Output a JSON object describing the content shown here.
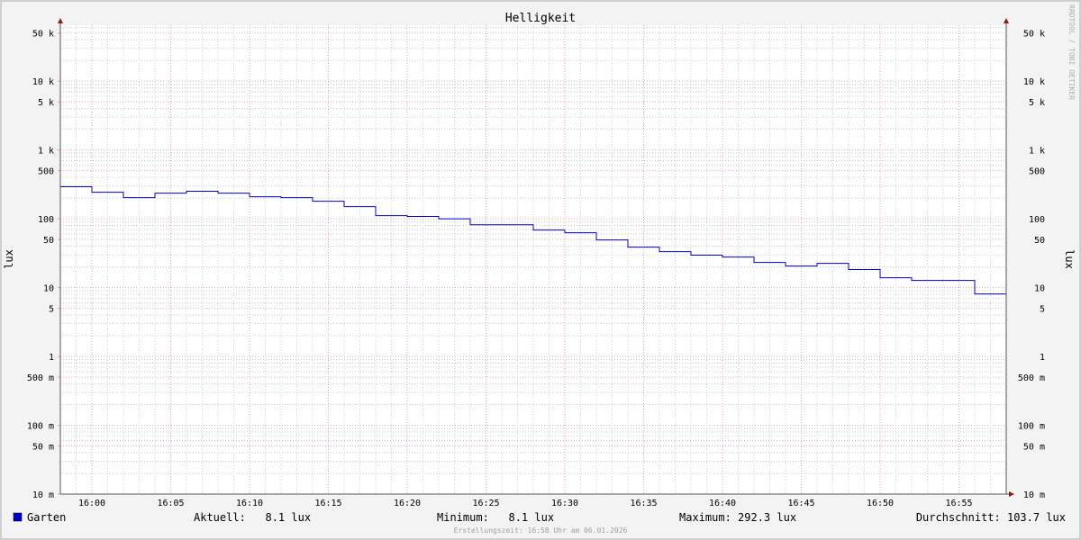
{
  "chart_data": {
    "type": "line",
    "title": "Helligkeit",
    "ylabel": "lux",
    "ylabel_right": "lux",
    "y_scale": "log",
    "ylim": [
      0.01,
      65000
    ],
    "xlim": [
      "15:58",
      "16:58"
    ],
    "x_ticks": [
      "16:00",
      "16:05",
      "16:10",
      "16:15",
      "16:20",
      "16:25",
      "16:30",
      "16:35",
      "16:40",
      "16:45",
      "16:50",
      "16:55"
    ],
    "y_ticks": [
      {
        "value": 50000,
        "label": "50 k"
      },
      {
        "value": 10000,
        "label": "10 k"
      },
      {
        "value": 5000,
        "label": "5 k"
      },
      {
        "value": 1000,
        "label": "1 k"
      },
      {
        "value": 500,
        "label": "500"
      },
      {
        "value": 100,
        "label": "100"
      },
      {
        "value": 50,
        "label": "50"
      },
      {
        "value": 10,
        "label": "10"
      },
      {
        "value": 5,
        "label": "5"
      },
      {
        "value": 1,
        "label": "1"
      },
      {
        "value": 0.5,
        "label": "500 m"
      },
      {
        "value": 0.1,
        "label": "100 m"
      },
      {
        "value": 0.05,
        "label": "50 m"
      },
      {
        "value": 0.01,
        "label": "10 m"
      }
    ],
    "grid": true,
    "step": true,
    "series": [
      {
        "name": "Garten",
        "color": "#0000cc",
        "x": [
          "15:58",
          "16:00",
          "16:02",
          "16:04",
          "16:06",
          "16:08",
          "16:10",
          "16:12",
          "16:14",
          "16:16",
          "16:18",
          "16:20",
          "16:22",
          "16:24",
          "16:28",
          "16:30",
          "16:32",
          "16:34",
          "16:36",
          "16:38",
          "16:40",
          "16:42",
          "16:44",
          "16:46",
          "16:48",
          "16:50",
          "16:52",
          "16:56"
        ],
        "values": [
          292.3,
          243,
          203,
          236,
          251,
          236,
          209,
          203,
          180,
          150,
          111,
          108,
          100,
          82,
          68.7,
          62.7,
          49.3,
          38.7,
          33.3,
          29.6,
          27.8,
          23.2,
          20.6,
          22.5,
          18.3,
          13.9,
          12.7,
          8.1
        ]
      }
    ]
  },
  "legend": {
    "series_name": "Garten",
    "swatch_color": "#0000cc",
    "current": "Aktuell:   8.1 lux",
    "minimum": "Minimum:   8.1 lux",
    "maximum": "Maximum: 292.3 lux",
    "average": "Durchschnitt: 103.7 lux"
  },
  "footer": "Erstellungszeit: 16:58 Uhr am 06.01.2026",
  "watermark": "RRDTOOL / TOBI OETIKER"
}
